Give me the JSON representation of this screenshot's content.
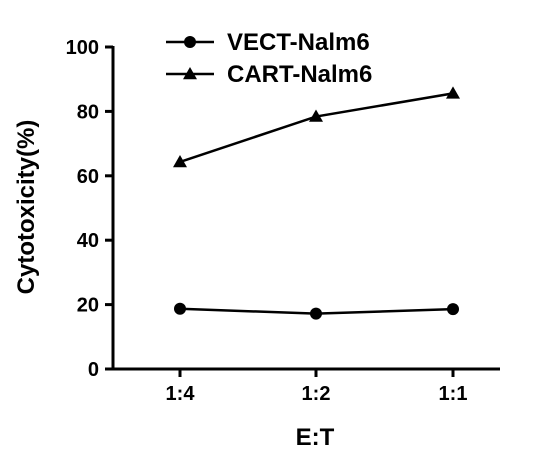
{
  "chart_data": {
    "type": "line",
    "title": "",
    "xlabel": "E:T",
    "ylabel": "Cytotoxicity(%)",
    "categories": [
      "1:4",
      "1:2",
      "1:1"
    ],
    "ylim": [
      0,
      100
    ],
    "yticks": [
      0,
      20,
      40,
      60,
      80,
      100
    ],
    "grid": false,
    "legend_position": "top",
    "series": [
      {
        "name": "VECT-Nalm6",
        "marker": "circle",
        "color": "#000000",
        "values": [
          18.7,
          17.2,
          18.6
        ]
      },
      {
        "name": "CART-Nalm6",
        "marker": "triangle",
        "color": "#000000",
        "values": [
          64.3,
          78.4,
          85.6
        ]
      }
    ]
  }
}
